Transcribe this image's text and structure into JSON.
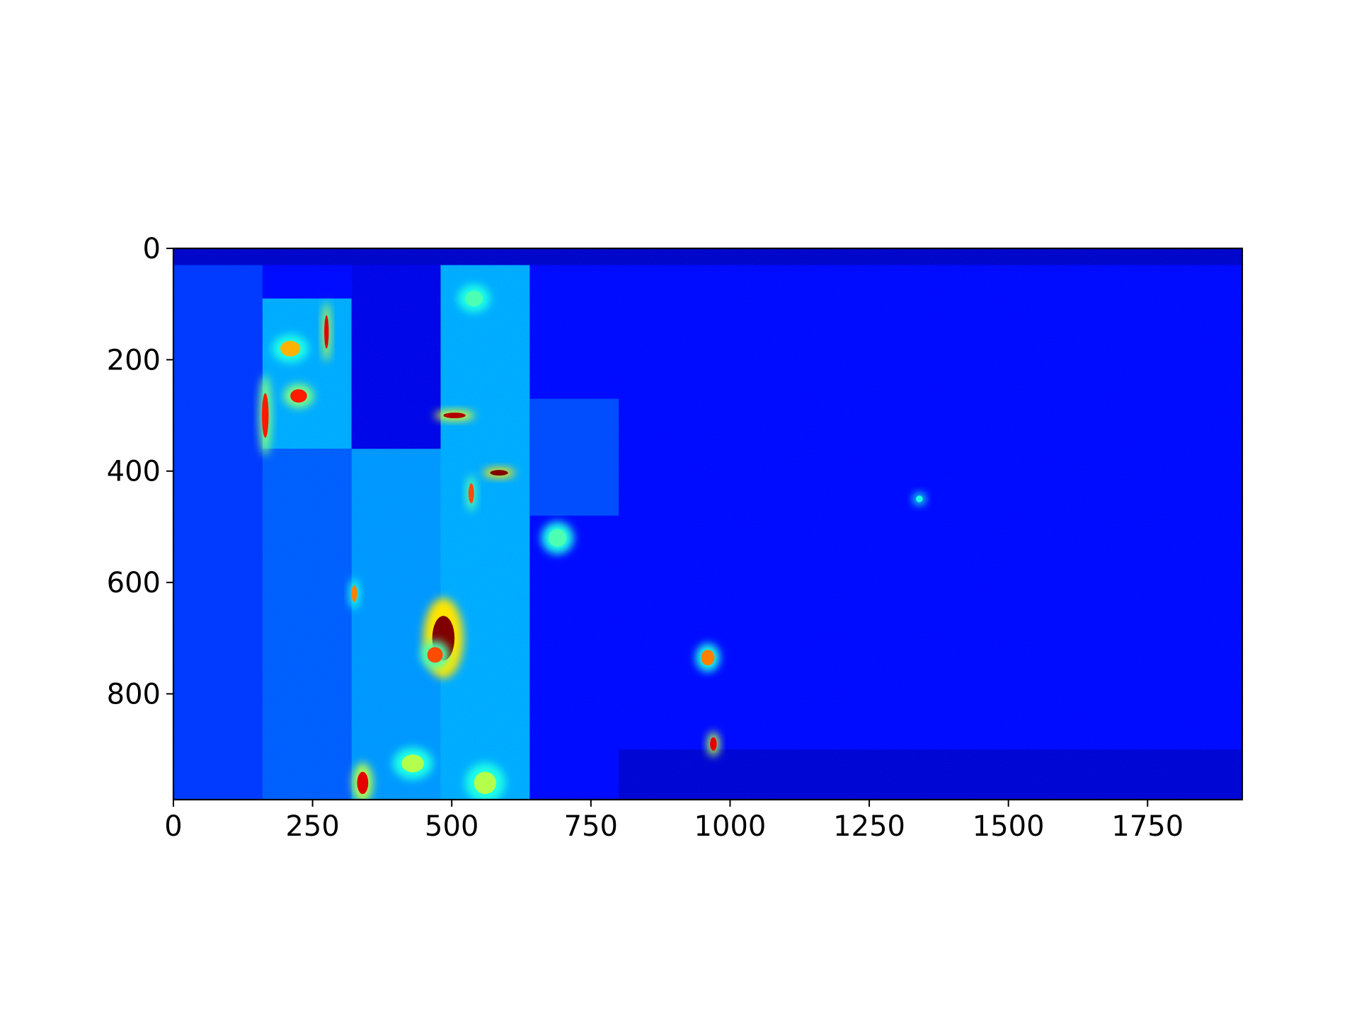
{
  "chart_data": {
    "type": "heatmap",
    "title": "",
    "xlabel": "",
    "ylabel": "",
    "colormap": "jet",
    "xlim": [
      0,
      1920
    ],
    "ylim": [
      990,
      0
    ],
    "x_ticks": [
      0,
      250,
      500,
      750,
      1000,
      1250,
      1500,
      1750
    ],
    "x_tick_labels": [
      "0",
      "250",
      "500",
      "750",
      "1000",
      "1250",
      "1500",
      "1750"
    ],
    "y_ticks": [
      0,
      200,
      400,
      600,
      800
    ],
    "y_tick_labels": [
      "0",
      "200",
      "400",
      "600",
      "800"
    ],
    "grid": false,
    "background_level": 0.13,
    "regions": [
      {
        "x0": 0,
        "x1": 1920,
        "y0": 0,
        "y1": 30,
        "level": 0.07
      },
      {
        "x0": 0,
        "x1": 160,
        "y0": 30,
        "y1": 990,
        "level": 0.18
      },
      {
        "x0": 160,
        "x1": 320,
        "y0": 90,
        "y1": 360,
        "level": 0.3
      },
      {
        "x0": 160,
        "x1": 320,
        "y0": 360,
        "y1": 990,
        "level": 0.22
      },
      {
        "x0": 320,
        "x1": 480,
        "y0": 30,
        "y1": 360,
        "level": 0.1
      },
      {
        "x0": 320,
        "x1": 480,
        "y0": 360,
        "y1": 990,
        "level": 0.28
      },
      {
        "x0": 480,
        "x1": 640,
        "y0": 30,
        "y1": 990,
        "level": 0.3
      },
      {
        "x0": 640,
        "x1": 800,
        "y0": 270,
        "y1": 480,
        "level": 0.2
      },
      {
        "x0": 800,
        "x1": 1920,
        "y0": 900,
        "y1": 990,
        "level": 0.08
      }
    ],
    "hotspots": [
      {
        "x": 165,
        "y": 300,
        "rx": 6,
        "ry": 40,
        "level": 0.85
      },
      {
        "x": 210,
        "y": 180,
        "rx": 18,
        "ry": 14,
        "level": 0.7
      },
      {
        "x": 225,
        "y": 265,
        "rx": 15,
        "ry": 12,
        "level": 0.85
      },
      {
        "x": 275,
        "y": 150,
        "rx": 4,
        "ry": 30,
        "level": 0.9
      },
      {
        "x": 505,
        "y": 300,
        "rx": 20,
        "ry": 5,
        "level": 0.95
      },
      {
        "x": 585,
        "y": 403,
        "rx": 16,
        "ry": 5,
        "level": 1.0
      },
      {
        "x": 535,
        "y": 440,
        "rx": 5,
        "ry": 18,
        "level": 0.8
      },
      {
        "x": 485,
        "y": 700,
        "rx": 20,
        "ry": 40,
        "level": 1.0
      },
      {
        "x": 470,
        "y": 730,
        "rx": 14,
        "ry": 14,
        "level": 0.8
      },
      {
        "x": 340,
        "y": 960,
        "rx": 10,
        "ry": 20,
        "level": 0.9
      },
      {
        "x": 325,
        "y": 620,
        "rx": 5,
        "ry": 15,
        "level": 0.75
      },
      {
        "x": 960,
        "y": 735,
        "rx": 12,
        "ry": 14,
        "level": 0.75
      },
      {
        "x": 970,
        "y": 890,
        "rx": 6,
        "ry": 12,
        "level": 0.9
      },
      {
        "x": 430,
        "y": 925,
        "rx": 20,
        "ry": 16,
        "level": 0.55
      },
      {
        "x": 560,
        "y": 960,
        "rx": 20,
        "ry": 20,
        "level": 0.55
      },
      {
        "x": 540,
        "y": 90,
        "rx": 16,
        "ry": 14,
        "level": 0.45
      },
      {
        "x": 690,
        "y": 520,
        "rx": 16,
        "ry": 16,
        "level": 0.45
      },
      {
        "x": 1340,
        "y": 450,
        "rx": 6,
        "ry": 6,
        "level": 0.4
      }
    ]
  }
}
